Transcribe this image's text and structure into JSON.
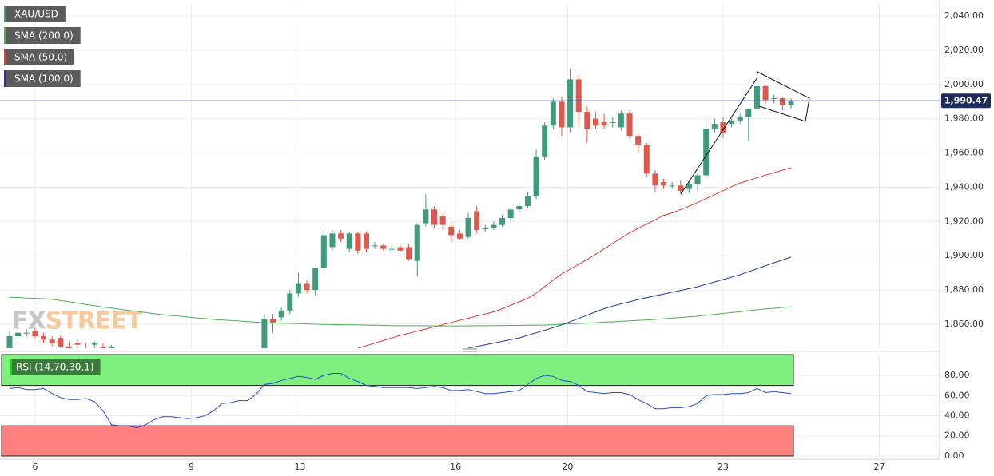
{
  "chart_data": [
    {
      "type": "candlestick",
      "name": "XAU/USD",
      "color": "#3f9a7e",
      "up_color": "#3f9a7e",
      "down_color": "#e0574b",
      "open": [
        1846,
        1853,
        1855,
        1856,
        1853,
        1851,
        1852,
        1847,
        1849,
        1846,
        1848,
        1847,
        1846,
        null,
        null,
        null,
        null,
        null,
        null,
        null,
        null,
        null,
        null,
        null,
        null,
        null,
        null,
        null,
        null,
        null,
        1841,
        1863,
        1864,
        1868,
        1878,
        1884,
        1880,
        1893,
        1905,
        1913,
        1904,
        1913,
        1913,
        1906,
        1906,
        1904,
        1905,
        1905,
        1897,
        1919,
        1927,
        1923,
        1917,
        1913,
        1911,
        1926,
        1916,
        1916,
        1918,
        1922,
        1927,
        1929,
        1935,
        1958,
        1976,
        1990,
        1975,
        2003,
        1984,
        1980,
        1978,
        1978,
        1975,
        1983,
        1970,
        1965,
        1948,
        1943,
        1941,
        1941,
        1939,
        1942,
        1947,
        1974,
        1978,
        1977,
        1979,
        1981,
        1986,
        1999,
        1992,
        1992,
        1988
      ],
      "high": [
        1856,
        1856,
        1857,
        1858,
        1855,
        1853,
        1854,
        1850,
        1851,
        1849,
        1850,
        1849,
        1848,
        null,
        null,
        null,
        null,
        null,
        null,
        null,
        null,
        null,
        null,
        null,
        null,
        null,
        null,
        null,
        null,
        null,
        1866,
        1866,
        1870,
        1880,
        1890,
        1886,
        1892,
        1916,
        1915,
        1915,
        1914,
        1914,
        1914,
        1908,
        1907,
        1906,
        1906,
        1907,
        1919,
        1936,
        1929,
        1925,
        1920,
        1915,
        1925,
        1929,
        1918,
        1920,
        1924,
        1928,
        1931,
        1937,
        1962,
        1978,
        1992,
        1993,
        2009,
        2006,
        1987,
        1984,
        1983,
        1981,
        1985,
        1985,
        1972,
        1966,
        1950,
        1945,
        1943,
        1944,
        1943,
        1948,
        1980,
        1980,
        1981,
        1980,
        1983,
        1986,
        2003,
        2000,
        1994,
        1993,
        1992
      ],
      "low": [
        1844,
        1851,
        1853,
        1852,
        1849,
        1847,
        1846,
        1843,
        1845,
        1842,
        1846,
        1844,
        1843,
        null,
        null,
        null,
        null,
        null,
        null,
        null,
        null,
        null,
        null,
        null,
        null,
        null,
        null,
        null,
        null,
        null,
        1838,
        1855,
        1862,
        1866,
        1876,
        1878,
        1877,
        1891,
        1903,
        1908,
        1902,
        1901,
        1902,
        1904,
        1903,
        1902,
        1902,
        1897,
        1888,
        1917,
        1916,
        1915,
        1908,
        1909,
        1910,
        1913,
        1914,
        1915,
        1917,
        1920,
        1925,
        1928,
        1933,
        1956,
        1974,
        1970,
        1972,
        1976,
        1966,
        1974,
        1974,
        1975,
        1973,
        1968,
        1960,
        1946,
        1937,
        1939,
        1939,
        1936,
        1937,
        1938,
        1945,
        1972,
        1969,
        1975,
        1977,
        1967,
        1984,
        1989,
        1989,
        1985,
        1986
      ],
      "close": [
        1853,
        1855,
        1855,
        1853,
        1851,
        1849,
        1847,
        1845,
        1848,
        1844,
        1849,
        1845,
        1847,
        null,
        null,
        null,
        null,
        null,
        null,
        null,
        null,
        null,
        null,
        null,
        null,
        null,
        null,
        null,
        null,
        null,
        1863,
        1861,
        1868,
        1878,
        1884,
        1880,
        1893,
        1912,
        1913,
        1910,
        1913,
        1903,
        1904,
        1906,
        1904,
        1904,
        1903,
        1898,
        1918,
        1927,
        1918,
        1918,
        1912,
        1910,
        1922,
        1915,
        1916,
        1918,
        1922,
        1927,
        1929,
        1935,
        1958,
        1976,
        1990,
        1975,
        2003,
        1984,
        1974,
        1976,
        1976,
        1978,
        1983,
        1970,
        1965,
        1948,
        1941,
        1941,
        1941,
        1938,
        1942,
        1947,
        1974,
        1977,
        1972,
        1979,
        1981,
        1986,
        1999,
        1991,
        1992,
        1988,
        1990.47
      ],
      "series": [
        {
          "name": "SMA (200,0)",
          "color": "#4caf50",
          "values": [
            1875.8,
            1875.6,
            1875.3,
            1875.1,
            1874.9,
            1874.6,
            1873.8,
            1873.1,
            1872.3,
            1871.5,
            1870.8,
            1870,
            1869.4,
            1868.7,
            1868.1,
            1867.5,
            1866.8,
            1866.2,
            1865.6,
            1865.1,
            1864.7,
            1864.2,
            1863.7,
            1863.3,
            1862.8,
            1862.5,
            1862.2,
            1861.9,
            1861.5,
            1861.2,
            1860.9,
            1860.8,
            1860.6,
            1860.5,
            1860.3,
            1860.2,
            1860,
            1859.9,
            1859.8,
            1859.7,
            1859.6,
            1859.6,
            1859.5,
            1859.4,
            1859.3,
            1859.2,
            1859.1,
            1859.1,
            1859.1,
            1859.1,
            1859,
            1859,
            1859,
            1859,
            1859,
            1859.1,
            1859.1,
            1859.2,
            1859.2,
            1859.3,
            1859.3,
            1859.4,
            1859.4,
            1859.5,
            1859.7,
            1860,
            1860.2,
            1860.4,
            1860.7,
            1860.9,
            1861.2,
            1861.4,
            1861.7,
            1862,
            1862.3,
            1862.5,
            1862.8,
            1863.2,
            1863.6,
            1863.9,
            1864.3,
            1864.7,
            1865.2,
            1865.8,
            1866.3,
            1866.8,
            1867.3,
            1867.9,
            1868.4,
            1868.9,
            1869.3,
            1869.8,
            1870.2
          ]
        },
        {
          "name": "SMA (50,0)",
          "color": "#e53935",
          "values": [
            null,
            null,
            null,
            null,
            null,
            null,
            null,
            null,
            null,
            null,
            null,
            null,
            null,
            null,
            null,
            null,
            null,
            null,
            null,
            null,
            null,
            null,
            null,
            null,
            null,
            null,
            null,
            null,
            null,
            null,
            null,
            null,
            null,
            null,
            null,
            null,
            null,
            null,
            null,
            null,
            null,
            1846,
            1847.5,
            1849,
            1850.5,
            1852,
            1853.5,
            1854.7,
            1856,
            1857.2,
            1858.5,
            1859.7,
            1861,
            1862.3,
            1863.5,
            1864.8,
            1866,
            1867.2,
            1869.1,
            1871.1,
            1873.1,
            1875.1,
            1878.2,
            1882,
            1885.8,
            1889.4,
            1892.2,
            1895,
            1897.8,
            1900.9,
            1904,
            1907.2,
            1910.3,
            1913.4,
            1916,
            1918.5,
            1921,
            1923.6,
            1925,
            1927,
            1929,
            1931.1,
            1933.4,
            1935.7,
            1938,
            1940.3,
            1942.5,
            1944,
            1945.5,
            1947.1,
            1948.5,
            1950,
            1951.4
          ]
        },
        {
          "name": "SMA (100,0)",
          "color": "#1a3c9e",
          "values": [
            null,
            null,
            null,
            null,
            null,
            null,
            null,
            null,
            null,
            null,
            null,
            null,
            null,
            null,
            null,
            null,
            null,
            null,
            null,
            null,
            null,
            null,
            null,
            null,
            null,
            null,
            null,
            null,
            null,
            null,
            null,
            null,
            null,
            null,
            null,
            null,
            null,
            null,
            null,
            null,
            null,
            null,
            null,
            null,
            null,
            null,
            null,
            null,
            null,
            null,
            null,
            null,
            null,
            null,
            1846,
            1847,
            1848,
            1849,
            1850,
            1851,
            1852,
            1853.5,
            1855,
            1856.5,
            1858,
            1859.6,
            1861.5,
            1863.4,
            1865.3,
            1867.2,
            1869.1,
            1870.6,
            1871.9,
            1873.1,
            1874.4,
            1875.5,
            1876.6,
            1877.6,
            1878.7,
            1879.7,
            1880.8,
            1881.9,
            1883.3,
            1884.7,
            1886.1,
            1887.5,
            1888.9,
            1890.7,
            1892.4,
            1894.2,
            1895.9,
            1897.5,
            1899.2
          ]
        }
      ],
      "last_price": {
        "value": 1990.47,
        "label": "1,990.47"
      },
      "last_price_color": "#1f2d5c",
      "ylim": [
        1846,
        2047.5
      ],
      "yticks": [
        {
          "value": 1860,
          "label": "1,860.00"
        },
        {
          "value": 1880,
          "label": "1,880.00"
        },
        {
          "value": 1900,
          "label": "1,900.00"
        },
        {
          "value": 1920,
          "label": "1,920.00"
        },
        {
          "value": 1940,
          "label": "1,940.00"
        },
        {
          "value": 1960,
          "label": "1,960.00"
        },
        {
          "value": 1980,
          "label": "1,980.00"
        },
        {
          "value": 2000,
          "label": "2,000.00"
        },
        {
          "value": 2020,
          "label": "2,020.00"
        },
        {
          "value": 2040,
          "label": "2,040.00"
        }
      ],
      "xlim": [
        -1.13,
        109.5
      ],
      "xticks": [
        {
          "value": 3.0,
          "label": "6"
        },
        {
          "value": 21.4,
          "label": "9"
        },
        {
          "value": 34.2,
          "label": "13"
        },
        {
          "value": 52.5,
          "label": "16"
        },
        {
          "value": 65.7,
          "label": "20"
        },
        {
          "value": 84.0,
          "label": "23"
        },
        {
          "value": 102.4,
          "label": "27"
        }
      ],
      "grid": true,
      "watermark": [
        "FX",
        "STREET"
      ]
    },
    {
      "type": "line",
      "series": [
        {
          "name": "RSI (14,70,30,1)",
          "color": "#2a47d6",
          "values": [
            67,
            68,
            66,
            66,
            67,
            62,
            58,
            56,
            56,
            57,
            54,
            45,
            31,
            30,
            30,
            28,
            31,
            36,
            39,
            39,
            38,
            37,
            38,
            40,
            45,
            52,
            53,
            55,
            55,
            61,
            71,
            72,
            75,
            77,
            79,
            78,
            76,
            80,
            82,
            82,
            77,
            74,
            70,
            69,
            68,
            68,
            68,
            68,
            67,
            68,
            69,
            68,
            65,
            65,
            66,
            64,
            62,
            62,
            63,
            64,
            65,
            71,
            77,
            80,
            79,
            75,
            74,
            70,
            64,
            63,
            62,
            63,
            63,
            61,
            56,
            52,
            47,
            47,
            48,
            48,
            49,
            52,
            60,
            61,
            61,
            62,
            62,
            63,
            67,
            63,
            64,
            63,
            62
          ]
        }
      ],
      "upper_band": 70,
      "lower_band": 30,
      "upper_color": "#7ef07e",
      "lower_color": "#ff7f7f",
      "ylim": [
        -0.8,
        100.6
      ],
      "yticks": [
        {
          "value": 0,
          "label": "0.00"
        },
        {
          "value": 20,
          "label": "20.00"
        },
        {
          "value": 40,
          "label": "40.00"
        },
        {
          "value": 60,
          "label": "60.00"
        },
        {
          "value": 80,
          "label": "80.00"
        }
      ],
      "grid": true
    }
  ]
}
